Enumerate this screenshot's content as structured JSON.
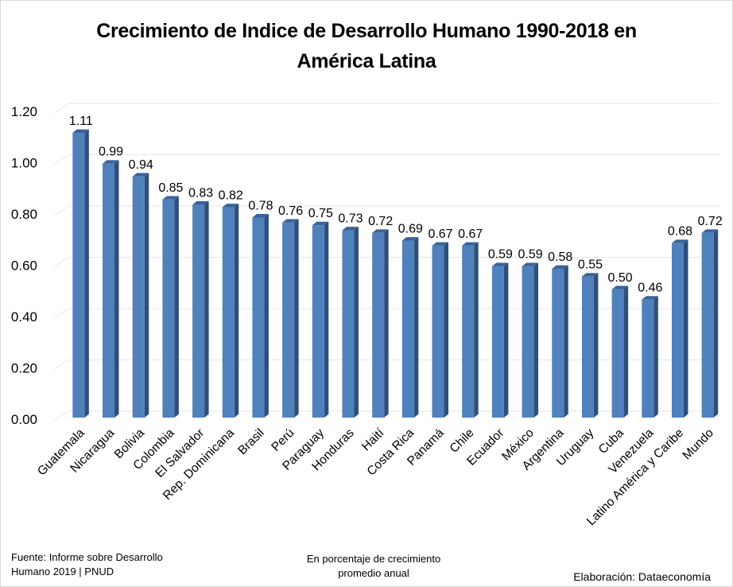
{
  "chart_data": {
    "type": "bar",
    "title": "Crecimiento de Indice de Desarrollo Humano 1990-2018 en América Latina",
    "title_lines": [
      "Crecimiento de Indice de Desarrollo Humano 1990-2018 en",
      "América Latina"
    ],
    "categories": [
      "Guatemala",
      "Nicaragua",
      "Bolivia",
      "Colombia",
      "El Salvador",
      "Rep. Dominicana",
      "Brasil",
      "Perú",
      "Paraguay",
      "Honduras",
      "Haití",
      "Costa Rica",
      "Panamá",
      "Chile",
      "Ecuador",
      "México",
      "Argentina",
      "Uruguay",
      "Cuba",
      "Venezuela",
      "Latino América y Caribe",
      "Mundo"
    ],
    "values": [
      1.11,
      0.99,
      0.94,
      0.85,
      0.83,
      0.82,
      0.78,
      0.76,
      0.75,
      0.73,
      0.72,
      0.69,
      0.67,
      0.67,
      0.59,
      0.59,
      0.58,
      0.55,
      0.5,
      0.46,
      0.68,
      0.72
    ],
    "data_labels": [
      "1.11",
      "0.99",
      "0.94",
      "0.85",
      "0.83",
      "0.82",
      "0.78",
      "0.76",
      "0.75",
      "0.73",
      "0.72",
      "0.69",
      "0.67",
      "0.67",
      "0.59",
      "0.59",
      "0.58",
      "0.55",
      "0.50",
      "0.46",
      "0.68",
      "0.72"
    ],
    "xlabel": "",
    "ylabel": "",
    "ylim": [
      0,
      1.2
    ],
    "yticks": [
      "0.00",
      "0.20",
      "0.40",
      "0.60",
      "0.80",
      "1.00",
      "1.20"
    ],
    "ytick_values": [
      0,
      0.2,
      0.4,
      0.6,
      0.8,
      1.0,
      1.2
    ],
    "grid": true,
    "style": "3d-column",
    "colors": {
      "bar_front": "#4f81bd",
      "bar_side": "#2f4f7a",
      "bar_top": "#3a6399",
      "grid": "#e6e6e6"
    }
  },
  "footer": {
    "source_line1": "Fuente: Informe sobre Desarrollo",
    "source_line2": "Humano 2019 | PNUD",
    "note_line1": "En porcentaje de crecimiento",
    "note_line2": "promedio anual",
    "credit": "Elaboración: Dataeconomía"
  }
}
